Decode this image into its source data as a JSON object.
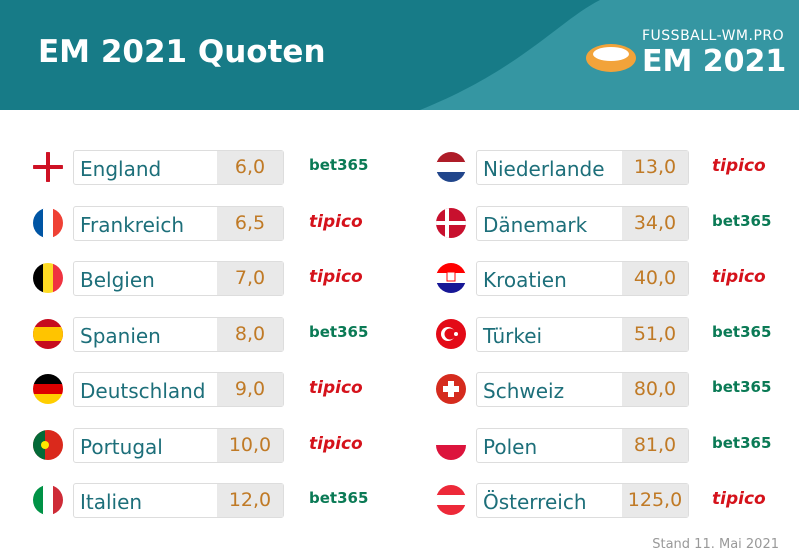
{
  "header": {
    "title": "EM 2021 Quoten",
    "logo_top": "FUSSBALL-WM.PRO",
    "logo_bottom": "EM 2021"
  },
  "table": {
    "columns": [
      {
        "rows": [
          {
            "country": "England",
            "odds": "6,0",
            "bookmaker": "bet365"
          },
          {
            "country": "Frankreich",
            "odds": "6,5",
            "bookmaker": "tipico"
          },
          {
            "country": "Belgien",
            "odds": "7,0",
            "bookmaker": "tipico"
          },
          {
            "country": "Spanien",
            "odds": "8,0",
            "bookmaker": "bet365"
          },
          {
            "country": "Deutschland",
            "odds": "9,0",
            "bookmaker": "tipico"
          },
          {
            "country": "Portugal",
            "odds": "10,0",
            "bookmaker": "tipico"
          },
          {
            "country": "Italien",
            "odds": "12,0",
            "bookmaker": "bet365"
          }
        ]
      },
      {
        "rows": [
          {
            "country": "Niederlande",
            "odds": "13,0",
            "bookmaker": "tipico"
          },
          {
            "country": "Dänemark",
            "odds": "34,0",
            "bookmaker": "bet365"
          },
          {
            "country": "Kroatien",
            "odds": "40,0",
            "bookmaker": "tipico"
          },
          {
            "country": "Türkei",
            "odds": "51,0",
            "bookmaker": "bet365"
          },
          {
            "country": "Schweiz",
            "odds": "80,0",
            "bookmaker": "bet365"
          },
          {
            "country": "Polen",
            "odds": "81,0",
            "bookmaker": "bet365"
          },
          {
            "country": "Österreich",
            "odds": "125,0",
            "bookmaker": "tipico"
          }
        ]
      }
    ]
  },
  "footer": "Stand 11. Mai 2021"
}
